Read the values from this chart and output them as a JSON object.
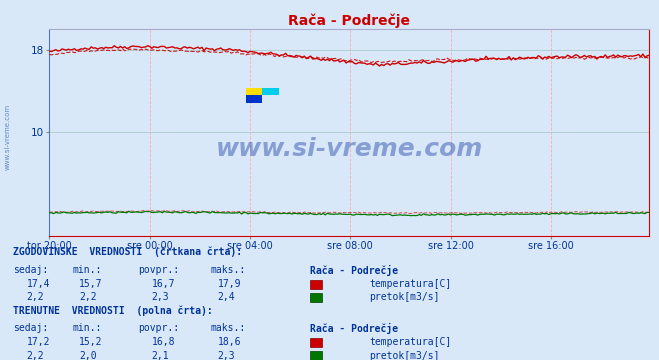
{
  "title": "Rača - Podrečje",
  "title_color": "#cc0000",
  "bg_color": "#d8e8f8",
  "plot_bg_color": "#d8e8f8",
  "grid_color_v": "#ffaaaa",
  "grid_color_h": "#aacccc",
  "x_tick_labels": [
    "tor 20:00",
    "sre 00:00",
    "sre 04:00",
    "sre 08:00",
    "sre 12:00",
    "sre 16:00"
  ],
  "x_tick_positions": [
    0,
    48,
    96,
    144,
    192,
    240
  ],
  "n_points": 288,
  "y_min": 0,
  "y_max": 20,
  "y_ticks": [
    10,
    18
  ],
  "temp_solid_color": "#cc0000",
  "flow_solid_color": "#007700",
  "flow_hist_color": "#cc0000",
  "watermark_text": "www.si-vreme.com",
  "watermark_color": "#2244aa",
  "watermark_alpha": 0.45,
  "left_label": "www.si-vreme.com",
  "left_label_color": "#2255aa",
  "table_title1": "ZGODOVINSKE  VREDNOSTI  (črtkana črta):",
  "table_title2": "TRENUTNE  VREDNOSTI  (polna črta):",
  "hist_temp_sedaj": "17,4",
  "hist_temp_min": "15,7",
  "hist_temp_povpr": "16,7",
  "hist_temp_maks": "17,9",
  "hist_flow_sedaj": "2,2",
  "hist_flow_min": "2,2",
  "hist_flow_povpr": "2,3",
  "hist_flow_maks": "2,4",
  "curr_temp_sedaj": "17,2",
  "curr_temp_min": "15,2",
  "curr_temp_povpr": "16,8",
  "curr_temp_maks": "18,6",
  "curr_flow_sedaj": "2,2",
  "curr_flow_min": "2,0",
  "curr_flow_povpr": "2,1",
  "curr_flow_maks": "2,3",
  "temp_label": "temperatura[C]",
  "flow_label": "pretok[m3/s]",
  "table_text_color": "#003399",
  "station_name": "Rača - Podrečje"
}
